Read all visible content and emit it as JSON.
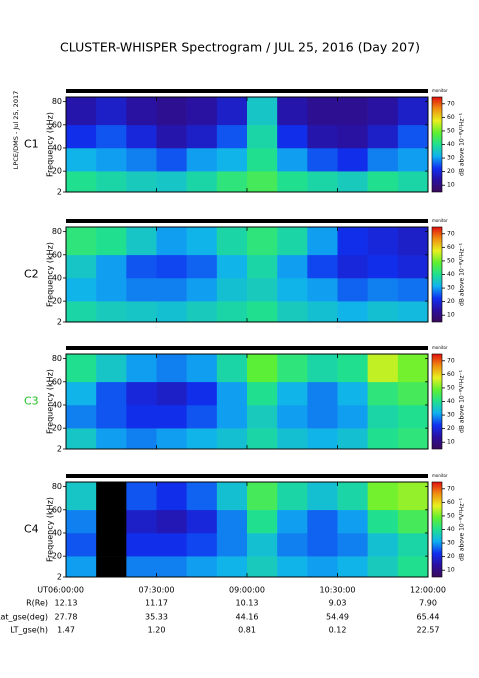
{
  "header": {
    "title": "CLUSTER-WHISPER Spectrogram / JUL 25, 2016 (Day 207)",
    "side_note": "LPCE/DMS - Jul 25, 2017"
  },
  "status_label": "monitor",
  "chart_data": [
    {
      "type": "heatmap",
      "title": "C1",
      "title_color": "#000000",
      "ylabel": "Frequency (kHz)",
      "xlim": [
        6,
        12
      ],
      "xticks": [
        6,
        7.5,
        9,
        10.5,
        12
      ],
      "ylim": [
        2,
        84
      ],
      "yticks": [
        2,
        20,
        40,
        60,
        80
      ],
      "x_edges": [
        6,
        6.5,
        7,
        7.5,
        8,
        8.5,
        9,
        9.5,
        10,
        10.5,
        11,
        11.5,
        12
      ],
      "y_edges": [
        2,
        20,
        40,
        60,
        84
      ],
      "z": [
        [
          40,
          38,
          36,
          35,
          38,
          42,
          45,
          40,
          38,
          36,
          40,
          38
        ],
        [
          32,
          30,
          28,
          25,
          30,
          32,
          40,
          30,
          25,
          22,
          28,
          30
        ],
        [
          22,
          25,
          20,
          15,
          18,
          25,
          38,
          22,
          15,
          14,
          18,
          25
        ],
        [
          15,
          18,
          14,
          12,
          14,
          18,
          35,
          15,
          12,
          12,
          14,
          18
        ]
      ],
      "clim": [
        5,
        75
      ],
      "cticks": [
        10,
        20,
        30,
        40,
        50,
        60,
        70
      ],
      "clabel": "dB above 10⁻⁸V²Hz⁻¹",
      "colors": [
        "#3a0a5a",
        "#2a10a0",
        "#1030f0",
        "#10b0f0",
        "#20e090",
        "#60f030",
        "#e8f020",
        "#f09010",
        "#e01010"
      ]
    },
    {
      "type": "heatmap",
      "title": "C2",
      "title_color": "#000000",
      "ylabel": "Frequency (kHz)",
      "xlim": [
        6,
        12
      ],
      "xticks": [
        6,
        7.5,
        9,
        10.5,
        12
      ],
      "ylim": [
        2,
        84
      ],
      "yticks": [
        2,
        20,
        40,
        60,
        80
      ],
      "x_edges": [
        6,
        6.5,
        7,
        7.5,
        8,
        8.5,
        9,
        9.5,
        10,
        10.5,
        11,
        11.5,
        12
      ],
      "y_edges": [
        2,
        20,
        40,
        60,
        84
      ],
      "z": [
        [
          38,
          36,
          35,
          34,
          36,
          38,
          40,
          36,
          34,
          32,
          34,
          33
        ],
        [
          32,
          30,
          28,
          28,
          30,
          34,
          36,
          32,
          30,
          26,
          28,
          27
        ],
        [
          35,
          30,
          25,
          24,
          26,
          32,
          38,
          30,
          24,
          20,
          22,
          20
        ],
        [
          42,
          40,
          35,
          30,
          32,
          38,
          42,
          38,
          30,
          22,
          20,
          18
        ]
      ],
      "clim": [
        5,
        75
      ],
      "cticks": [
        10,
        20,
        30,
        40,
        50,
        60,
        70
      ],
      "clabel": "dB above 10⁻⁸V²Hz⁻¹",
      "colors": [
        "#3a0a5a",
        "#2a10a0",
        "#1030f0",
        "#10b0f0",
        "#20e090",
        "#60f030",
        "#e8f020",
        "#f09010",
        "#e01010"
      ]
    },
    {
      "type": "heatmap",
      "title": "C3",
      "title_color": "#20c020",
      "ylabel": "Frequency (kHz)",
      "xlim": [
        6,
        12
      ],
      "xticks": [
        6,
        7.5,
        9,
        10.5,
        12
      ],
      "ylim": [
        2,
        84
      ],
      "yticks": [
        2,
        20,
        40,
        60,
        80
      ],
      "x_edges": [
        6,
        6.5,
        7,
        7.5,
        8,
        8.5,
        9,
        9.5,
        10,
        10.5,
        11,
        11.5,
        12
      ],
      "y_edges": [
        2,
        20,
        40,
        60,
        84
      ],
      "z": [
        [
          35,
          30,
          28,
          30,
          32,
          34,
          38,
          34,
          32,
          34,
          40,
          42
        ],
        [
          28,
          25,
          22,
          22,
          25,
          30,
          36,
          30,
          28,
          30,
          38,
          40
        ],
        [
          32,
          25,
          20,
          18,
          22,
          30,
          40,
          32,
          28,
          32,
          42,
          45
        ],
        [
          40,
          35,
          30,
          28,
          30,
          38,
          48,
          42,
          38,
          40,
          55,
          50
        ]
      ],
      "clim": [
        5,
        75
      ],
      "cticks": [
        10,
        20,
        30,
        40,
        50,
        60,
        70
      ],
      "clabel": "dB above 10⁻⁸V²Hz⁻¹",
      "colors": [
        "#3a0a5a",
        "#2a10a0",
        "#1030f0",
        "#10b0f0",
        "#20e090",
        "#60f030",
        "#e8f020",
        "#f09010",
        "#e01010"
      ]
    },
    {
      "type": "heatmap",
      "title": "C4",
      "title_color": "#000000",
      "ylabel": "Frequency (kHz)",
      "xlim": [
        6,
        12
      ],
      "xticks": [
        {
          "value": 6,
          "label": "06:00:00"
        },
        {
          "value": 7.5,
          "label": "07:30:00"
        },
        {
          "value": 9,
          "label": "09:00:00"
        },
        {
          "value": 10.5,
          "label": "10:30:00"
        },
        {
          "value": 12,
          "label": "12:00:00"
        }
      ],
      "ylim": [
        2,
        84
      ],
      "yticks": [
        2,
        20,
        40,
        60,
        80
      ],
      "x_edges": [
        6,
        6.5,
        7,
        7.5,
        8,
        8.5,
        9,
        9.5,
        10,
        10.5,
        11,
        11.5,
        12
      ],
      "y_edges": [
        2,
        20,
        40,
        60,
        84
      ],
      "z": [
        [
          30,
          5,
          28,
          28,
          30,
          32,
          36,
          32,
          30,
          32,
          36,
          40
        ],
        [
          25,
          5,
          22,
          22,
          24,
          28,
          34,
          28,
          26,
          28,
          34,
          38
        ],
        [
          28,
          5,
          18,
          16,
          20,
          28,
          40,
          30,
          26,
          30,
          40,
          45
        ],
        [
          35,
          5,
          25,
          22,
          26,
          34,
          45,
          38,
          34,
          38,
          50,
          52
        ]
      ],
      "clim": [
        5,
        75
      ],
      "cticks": [
        10,
        20,
        30,
        40,
        50,
        60,
        70
      ],
      "clabel": "dB above 10⁻⁸V²Hz⁻¹",
      "colors": [
        "#3a0a5a",
        "#2a10a0",
        "#1030f0",
        "#10b0f0",
        "#20e090",
        "#60f030",
        "#e8f020",
        "#f09010",
        "#e01010"
      ]
    }
  ],
  "ephemeris": {
    "labels": [
      "UT",
      "R(Re)",
      "Lat_gse(deg)",
      "LT_gse(h)"
    ],
    "rows": [
      [
        "12.13",
        "11.17",
        "10.13",
        "9.03",
        "7.90"
      ],
      [
        "27.78",
        "35.33",
        "44.16",
        "54.49",
        "65.44"
      ],
      [
        "1.47",
        "1.20",
        "0.81",
        "0.12",
        "22.57"
      ]
    ]
  }
}
